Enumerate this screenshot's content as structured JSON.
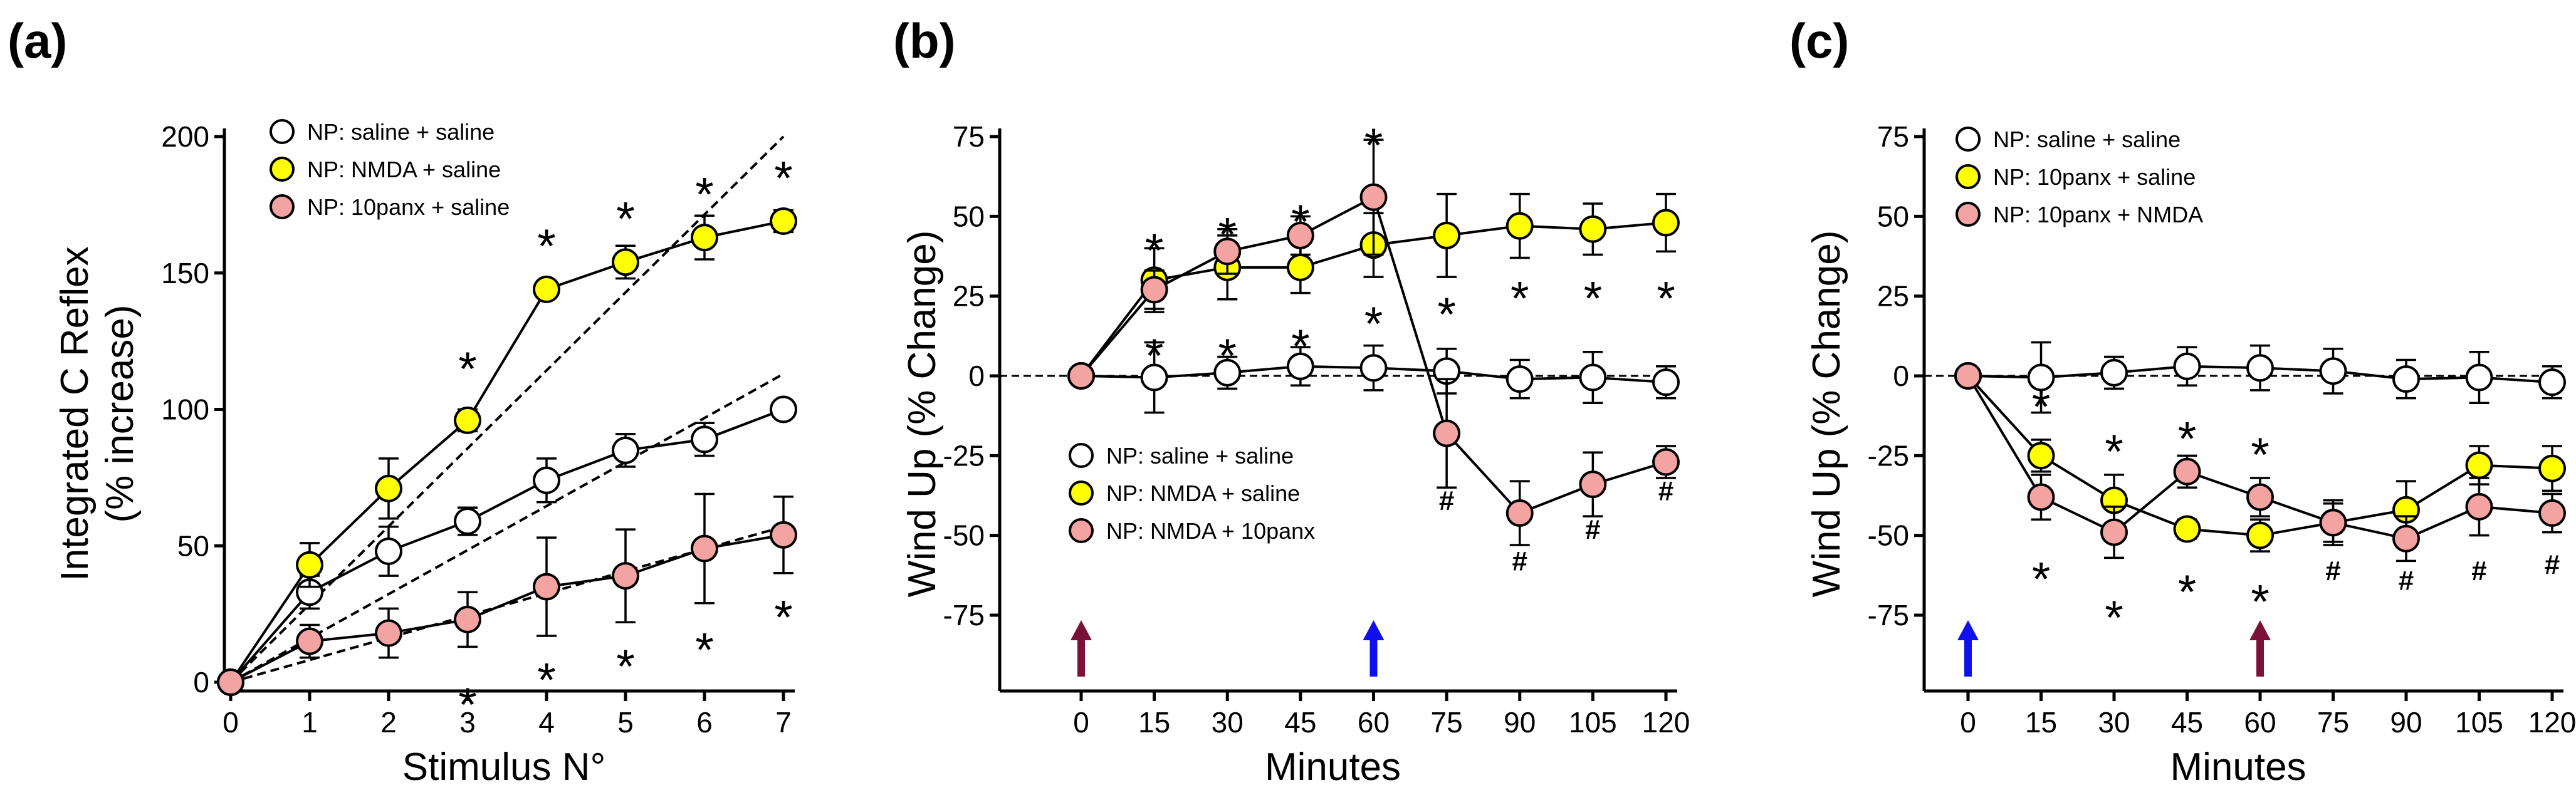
{
  "colors": {
    "saline": "#ffffff",
    "nmda": "#ffff00",
    "panx": "#f4a3a3",
    "arrow_maroon": "#7b1136",
    "arrow_blue": "#1010ee"
  },
  "chart_data": [
    {
      "panel": "(a)",
      "type": "line",
      "xlabel": "Stimulus N°",
      "ylabel": [
        "Integrated C Reflex",
        "(% increase)"
      ],
      "xlim": [
        0,
        7
      ],
      "ylim": [
        0,
        200
      ],
      "xticks": [
        "0",
        "1",
        "2",
        "3",
        "4",
        "5",
        "6",
        "7"
      ],
      "yticks": [
        "0",
        "50",
        "100",
        "150",
        "200"
      ],
      "legend_position": "top-left",
      "series": [
        {
          "name": "NP: saline + saline",
          "color": "#ffffff",
          "x": [
            0,
            1,
            2,
            3,
            4,
            5,
            6,
            7
          ],
          "y": [
            0,
            33,
            48,
            59,
            74,
            85,
            89,
            100
          ],
          "err": [
            0,
            6,
            9,
            5,
            8,
            6,
            6,
            3
          ]
        },
        {
          "name": "NP: NMDA + saline",
          "color": "#ffff00",
          "x": [
            0,
            1,
            2,
            3,
            4,
            5,
            6,
            7
          ],
          "y": [
            0,
            43,
            71,
            96,
            144,
            154,
            163,
            169
          ],
          "err": [
            0,
            8,
            11,
            4,
            3,
            6,
            8,
            4
          ]
        },
        {
          "name": "NP: 10panx + saline",
          "color": "#f4a3a3",
          "x": [
            0,
            1,
            2,
            3,
            4,
            5,
            6,
            7
          ],
          "y": [
            0,
            15,
            18,
            23,
            35,
            39,
            49,
            54
          ],
          "err": [
            0,
            6,
            9,
            10,
            18,
            17,
            20,
            14
          ]
        }
      ],
      "fit_lines": [
        {
          "x": [
            0,
            7
          ],
          "y": [
            0,
            200
          ]
        },
        {
          "x": [
            0,
            7
          ],
          "y": [
            0,
            113
          ]
        },
        {
          "x": [
            0,
            7
          ],
          "y": [
            0,
            57
          ]
        }
      ],
      "annotations": [
        {
          "text": "*",
          "x": 3,
          "y": 118
        },
        {
          "text": "*",
          "x": 4,
          "y": 163
        },
        {
          "text": "*",
          "x": 5,
          "y": 173
        },
        {
          "text": "*",
          "x": 6,
          "y": 182
        },
        {
          "text": "*",
          "x": 7,
          "y": 188
        },
        {
          "text": "*",
          "x": 3,
          "y": -5
        },
        {
          "text": "*",
          "x": 4,
          "y": 4
        },
        {
          "text": "*",
          "x": 5,
          "y": 9
        },
        {
          "text": "*",
          "x": 6,
          "y": 15
        },
        {
          "text": "*",
          "x": 7,
          "y": 27
        }
      ]
    },
    {
      "panel": "(b)",
      "type": "line",
      "xlabel": "Minutes",
      "ylabel": [
        "Wind Up (% Change)"
      ],
      "xlim": [
        -15,
        122
      ],
      "ylim": [
        -100,
        75
      ],
      "xticks": [
        "0",
        "15",
        "30",
        "45",
        "60",
        "75",
        "90",
        "105",
        "120"
      ],
      "yticks": [
        "-75",
        "-50",
        "-25",
        "0",
        "25",
        "50",
        "75"
      ],
      "legend_position": "bottom-left",
      "series": [
        {
          "name": "NP: saline + saline",
          "color": "#ffffff",
          "x": [
            0,
            15,
            30,
            45,
            60,
            75,
            90,
            105,
            120
          ],
          "y": [
            0,
            -0.5,
            1,
            3,
            2.5,
            1.5,
            -1,
            -0.5,
            -2
          ],
          "err": [
            0,
            11,
            5,
            6,
            7,
            7,
            6,
            8,
            5
          ]
        },
        {
          "name": "NP: NMDA + saline",
          "color": "#ffff00",
          "x": [
            0,
            15,
            30,
            45,
            60,
            75,
            90,
            105,
            120
          ],
          "y": [
            0,
            30,
            34,
            34,
            41,
            44,
            47,
            46,
            48
          ],
          "err": [
            0,
            10,
            10,
            8,
            10,
            13,
            10,
            8,
            9
          ]
        },
        {
          "name": "NP: NMDA + 10panx",
          "color": "#f4a3a3",
          "x": [
            0,
            15,
            30,
            45,
            60,
            75,
            90,
            105,
            120
          ],
          "y": [
            0,
            27,
            39,
            44,
            56,
            -18,
            -43,
            -34,
            -27
          ],
          "err": [
            0,
            6,
            7,
            6,
            18,
            17,
            10,
            10,
            5
          ]
        }
      ],
      "baseline": 0,
      "arrows": [
        {
          "x": 0,
          "color": "#7b1136"
        },
        {
          "x": 60,
          "color": "#1010ee"
        }
      ],
      "annotations": [
        {
          "text": "*",
          "x": 15,
          "y": 42
        },
        {
          "text": "*",
          "x": 30,
          "y": 47
        },
        {
          "text": "*",
          "x": 45,
          "y": 51
        },
        {
          "text": "*",
          "x": 60,
          "y": 75
        },
        {
          "text": "*",
          "x": 15,
          "y": 9
        },
        {
          "text": "*",
          "x": 30,
          "y": 9
        },
        {
          "text": "*",
          "x": 45,
          "y": 12
        },
        {
          "text": "*",
          "x": 60,
          "y": 19
        },
        {
          "text": "*",
          "x": 75,
          "y": 22
        },
        {
          "text": "*",
          "x": 90,
          "y": 27
        },
        {
          "text": "*",
          "x": 105,
          "y": 27
        },
        {
          "text": "*",
          "x": 120,
          "y": 27
        },
        {
          "text": "#",
          "x": 75,
          "y": -42
        },
        {
          "text": "#",
          "x": 90,
          "y": -61
        },
        {
          "text": "#",
          "x": 105,
          "y": -51
        },
        {
          "text": "#",
          "x": 120,
          "y": -39
        }
      ]
    },
    {
      "panel": "(c)",
      "type": "line",
      "xlabel": "Minutes",
      "ylabel": [
        "Wind Up (% Change)"
      ],
      "xlim": [
        -15,
        122
      ],
      "ylim": [
        -100,
        75
      ],
      "xticks": [
        "0",
        "15",
        "30",
        "45",
        "60",
        "75",
        "90",
        "105",
        "120"
      ],
      "yticks": [
        "-75",
        "-50",
        "-25",
        "0",
        "25",
        "50",
        "75"
      ],
      "legend_position": "top-left",
      "series": [
        {
          "name": "NP: saline + saline",
          "color": "#ffffff",
          "x": [
            0,
            15,
            30,
            45,
            60,
            75,
            90,
            105,
            120
          ],
          "y": [
            0,
            -0.5,
            1,
            3,
            2.5,
            1.5,
            -1,
            -0.5,
            -2
          ],
          "err": [
            0,
            11,
            5,
            6,
            7,
            7,
            6,
            8,
            5
          ]
        },
        {
          "name": "NP: 10panx + saline",
          "color": "#ffff00",
          "x": [
            0,
            15,
            30,
            45,
            60,
            75,
            90,
            105,
            120
          ],
          "y": [
            0,
            -25,
            -39,
            -48,
            -50,
            -46,
            -42,
            -28,
            -29
          ],
          "err": [
            0,
            5,
            8,
            3,
            5,
            6,
            9,
            6,
            7
          ]
        },
        {
          "name": "NP: 10panx + NMDA",
          "color": "#f4a3a3",
          "x": [
            0,
            15,
            30,
            45,
            60,
            75,
            90,
            105,
            120
          ],
          "y": [
            0,
            -38,
            -49,
            -30,
            -38,
            -46,
            -51,
            -41,
            -43
          ],
          "err": [
            0,
            7,
            8,
            5,
            6,
            7,
            7,
            9,
            6
          ]
        }
      ],
      "baseline": 0,
      "arrows": [
        {
          "x": 0,
          "color": "#1010ee"
        },
        {
          "x": 60,
          "color": "#7b1136"
        }
      ],
      "annotations": [
        {
          "text": "*",
          "x": 15,
          "y": -7
        },
        {
          "text": "*",
          "x": 30,
          "y": -21
        },
        {
          "text": "*",
          "x": 45,
          "y": -17
        },
        {
          "text": "*",
          "x": 60,
          "y": -22
        },
        {
          "text": "*",
          "x": 15,
          "y": -61
        },
        {
          "text": "*",
          "x": 30,
          "y": -73
        },
        {
          "text": "*",
          "x": 45,
          "y": -65
        },
        {
          "text": "*",
          "x": 60,
          "y": -68
        },
        {
          "text": "#",
          "x": 75,
          "y": -64
        },
        {
          "text": "#",
          "x": 90,
          "y": -67
        },
        {
          "text": "#",
          "x": 105,
          "y": -64
        },
        {
          "text": "#",
          "x": 120,
          "y": -62
        }
      ]
    }
  ]
}
